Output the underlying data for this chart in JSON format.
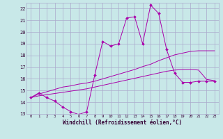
{
  "background_color": "#c8e8e8",
  "grid_color": "#aaaacc",
  "line_color": "#aa00aa",
  "xlabel": "Windchill (Refroidissement éolien,°C)",
  "xlim": [
    -0.5,
    23.5
  ],
  "ylim": [
    13,
    22.5
  ],
  "yticks": [
    13,
    14,
    15,
    16,
    17,
    18,
    19,
    20,
    21,
    22
  ],
  "xticks": [
    0,
    1,
    2,
    3,
    4,
    5,
    6,
    7,
    8,
    9,
    10,
    11,
    12,
    13,
    14,
    15,
    16,
    17,
    18,
    19,
    20,
    21,
    22,
    23
  ],
  "line1_x": [
    0,
    1,
    2,
    3,
    4,
    5,
    6,
    7,
    8,
    9,
    10,
    11,
    12,
    13,
    14,
    15,
    16,
    17,
    18,
    19,
    20,
    21,
    22,
    23
  ],
  "line1_y": [
    14.4,
    14.8,
    14.4,
    14.1,
    13.6,
    13.2,
    12.95,
    13.2,
    16.3,
    19.2,
    18.8,
    19.0,
    21.2,
    21.3,
    19.0,
    22.3,
    21.6,
    18.5,
    16.5,
    15.7,
    15.7,
    15.8,
    15.8,
    15.8
  ],
  "line2_x": [
    0,
    1,
    2,
    3,
    4,
    5,
    6,
    7,
    8,
    9,
    10,
    11,
    12,
    13,
    14,
    15,
    16,
    17,
    18,
    19,
    20,
    21,
    22,
    23
  ],
  "line2_y": [
    14.4,
    14.7,
    14.9,
    15.1,
    15.3,
    15.4,
    15.55,
    15.65,
    15.8,
    16.0,
    16.2,
    16.4,
    16.6,
    16.8,
    17.05,
    17.25,
    17.55,
    17.8,
    18.05,
    18.2,
    18.35,
    18.4,
    18.4,
    18.4
  ],
  "line3_x": [
    0,
    1,
    2,
    3,
    4,
    5,
    6,
    7,
    8,
    9,
    10,
    11,
    12,
    13,
    14,
    15,
    16,
    17,
    18,
    19,
    20,
    21,
    22,
    23
  ],
  "line3_y": [
    14.4,
    14.55,
    14.65,
    14.75,
    14.85,
    14.95,
    15.05,
    15.15,
    15.3,
    15.45,
    15.6,
    15.75,
    15.9,
    16.05,
    16.2,
    16.35,
    16.5,
    16.65,
    16.75,
    16.8,
    16.82,
    16.75,
    15.95,
    15.85
  ]
}
